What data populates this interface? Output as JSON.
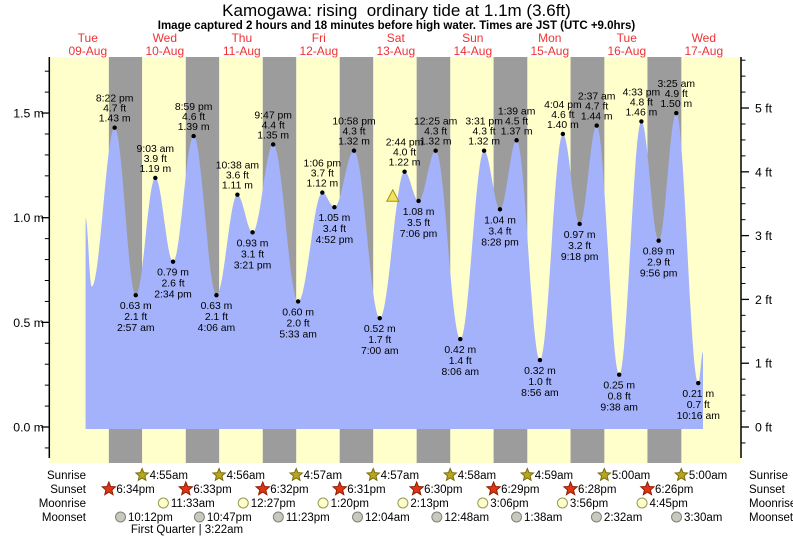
{
  "chart_data": {
    "type": "area",
    "title": "Kamogawa: rising  ordinary tide at 1.1m (3.6ft)",
    "subtitle": "Image captured 2 hours and 18 minutes before high water. Times are JST (UTC +9.0hrs)",
    "units": {
      "left_axis": "m",
      "right_axis": "ft"
    },
    "y_axis_left": {
      "labels": [
        "0.0 m",
        "0.5 m",
        "1.0 m",
        "1.5 m"
      ],
      "values": [
        0,
        0.5,
        1.0,
        1.5
      ],
      "minor_step_m": 0.1
    },
    "y_axis_right": {
      "labels": [
        "0 ft",
        "1 ft",
        "2 ft",
        "3 ft",
        "4 ft",
        "5 ft"
      ],
      "values": [
        0,
        1,
        2,
        3,
        4,
        5
      ],
      "minor_step_ft": 0.25
    },
    "days": [
      {
        "name": "Tue",
        "date": "09-Aug"
      },
      {
        "name": "Wed",
        "date": "10-Aug"
      },
      {
        "name": "Thu",
        "date": "11-Aug"
      },
      {
        "name": "Fri",
        "date": "12-Aug"
      },
      {
        "name": "Sat",
        "date": "13-Aug"
      },
      {
        "name": "Sun",
        "date": "14-Aug"
      },
      {
        "name": "Mon",
        "date": "15-Aug"
      },
      {
        "name": "Tue",
        "date": "16-Aug"
      },
      {
        "name": "Wed",
        "date": "17-Aug"
      }
    ],
    "tide_events": [
      {
        "day": 0,
        "type": "high",
        "time": "8:22 pm",
        "h24": 20.37,
        "m": "1.43",
        "ft": "4.7"
      },
      {
        "day": 1,
        "type": "low",
        "time": "2:57 am",
        "h24": 2.95,
        "m": "0.63",
        "ft": "2.1"
      },
      {
        "day": 1,
        "type": "high",
        "time": "9:03 am",
        "h24": 9.05,
        "m": "1.19",
        "ft": "3.9"
      },
      {
        "day": 1,
        "type": "low",
        "time": "2:34 pm",
        "h24": 14.57,
        "m": "0.79",
        "ft": "2.6"
      },
      {
        "day": 1,
        "type": "high",
        "time": "8:59 pm",
        "h24": 20.98,
        "m": "1.39",
        "ft": "4.6"
      },
      {
        "day": 2,
        "type": "low",
        "time": "4:06 am",
        "h24": 4.1,
        "m": "0.63",
        "ft": "2.1"
      },
      {
        "day": 2,
        "type": "high",
        "time": "10:38 am",
        "h24": 10.63,
        "m": "1.11",
        "ft": "3.6"
      },
      {
        "day": 2,
        "type": "low",
        "time": "3:21 pm",
        "h24": 15.35,
        "m": "0.93",
        "ft": "3.1"
      },
      {
        "day": 2,
        "type": "high",
        "time": "9:47 pm",
        "h24": 21.78,
        "m": "1.35",
        "ft": "4.4"
      },
      {
        "day": 3,
        "type": "low",
        "time": "5:33 am",
        "h24": 5.55,
        "m": "0.60",
        "ft": "2.0"
      },
      {
        "day": 3,
        "type": "high",
        "time": "1:06 pm",
        "h24": 13.1,
        "m": "1.12",
        "ft": "3.7"
      },
      {
        "day": 3,
        "type": "low",
        "time": "4:52 pm",
        "h24": 16.87,
        "m": "1.05",
        "ft": "3.4"
      },
      {
        "day": 3,
        "type": "high",
        "time": "10:58 pm",
        "h24": 22.97,
        "m": "1.32",
        "ft": "4.3"
      },
      {
        "day": 4,
        "type": "low",
        "time": "7:00 am",
        "h24": 7.0,
        "m": "0.52",
        "ft": "1.7"
      },
      {
        "day": 4,
        "type": "high",
        "time": "2:44 pm",
        "h24": 14.73,
        "m": "1.22",
        "ft": "4.0"
      },
      {
        "day": 4,
        "type": "low",
        "time": "7:06 pm",
        "h24": 19.1,
        "m": "1.08",
        "ft": "3.5"
      },
      {
        "day": 5,
        "type": "high",
        "time": "12:25 am",
        "h24": 0.42,
        "m": "1.32",
        "ft": "4.3"
      },
      {
        "day": 5,
        "type": "low",
        "time": "8:06 am",
        "h24": 8.1,
        "m": "0.42",
        "ft": "1.4"
      },
      {
        "day": 5,
        "type": "high",
        "time": "3:31 pm",
        "h24": 15.52,
        "m": "1.32",
        "ft": "4.3"
      },
      {
        "day": 5,
        "type": "low",
        "time": "8:28 pm",
        "h24": 20.47,
        "m": "1.04",
        "ft": "3.4"
      },
      {
        "day": 6,
        "type": "high",
        "time": "1:39 am",
        "h24": 1.65,
        "m": "1.37",
        "ft": "4.5"
      },
      {
        "day": 6,
        "type": "low",
        "time": "8:56 am",
        "h24": 8.93,
        "m": "0.32",
        "ft": "1.0"
      },
      {
        "day": 6,
        "type": "high",
        "time": "4:04 pm",
        "h24": 16.07,
        "m": "1.40",
        "ft": "4.6"
      },
      {
        "day": 6,
        "type": "low",
        "time": "9:18 pm",
        "h24": 21.3,
        "m": "0.97",
        "ft": "3.2"
      },
      {
        "day": 7,
        "type": "high",
        "time": "2:37 am",
        "h24": 2.62,
        "m": "1.44",
        "ft": "4.7"
      },
      {
        "day": 7,
        "type": "low",
        "time": "9:38 am",
        "h24": 9.63,
        "m": "0.25",
        "ft": "0.8"
      },
      {
        "day": 7,
        "type": "high",
        "time": "4:33 pm",
        "h24": 16.55,
        "m": "1.46",
        "ft": "4.8"
      },
      {
        "day": 7,
        "type": "low",
        "time": "9:56 pm",
        "h24": 21.93,
        "m": "0.89",
        "ft": "2.9"
      },
      {
        "day": 8,
        "type": "high",
        "time": "3:25 am",
        "h24": 3.42,
        "m": "1.50",
        "ft": "4.9"
      },
      {
        "day": 8,
        "type": "low",
        "time": "10:16 am",
        "h24": 10.27,
        "m": "0.21",
        "ft": "0.7"
      }
    ],
    "curve_edges": {
      "start": {
        "day": 0,
        "h24": 11.3,
        "h": 1.0
      },
      "start_low": {
        "day": 0,
        "h24": 13.2,
        "h": 0.67
      },
      "end": {
        "day": 8,
        "h24": 11.75,
        "h": 0.36
      }
    },
    "current_marker": {
      "day": 4,
      "h24": 12.0,
      "height_m": 1.1
    },
    "sun_moon": {
      "rows": [
        {
          "label": "Sunrise",
          "marker": "sunrise-star",
          "events": [
            {
              "day": 1,
              "time": "4:55am",
              "h24": 4.917
            },
            {
              "day": 2,
              "time": "4:56am",
              "h24": 4.933
            },
            {
              "day": 3,
              "time": "4:57am",
              "h24": 4.95
            },
            {
              "day": 4,
              "time": "4:57am",
              "h24": 4.95
            },
            {
              "day": 5,
              "time": "4:58am",
              "h24": 4.967
            },
            {
              "day": 6,
              "time": "4:59am",
              "h24": 4.983
            },
            {
              "day": 7,
              "time": "5:00am",
              "h24": 5.0
            },
            {
              "day": 8,
              "time": "5:00am",
              "h24": 5.0
            }
          ]
        },
        {
          "label": "Sunset",
          "marker": "sunset-star",
          "events": [
            {
              "day": 0,
              "time": "6:34pm",
              "h24": 18.567
            },
            {
              "day": 1,
              "time": "6:33pm",
              "h24": 18.55
            },
            {
              "day": 2,
              "time": "6:32pm",
              "h24": 18.533
            },
            {
              "day": 3,
              "time": "6:31pm",
              "h24": 18.517
            },
            {
              "day": 4,
              "time": "6:30pm",
              "h24": 18.5
            },
            {
              "day": 5,
              "time": "6:29pm",
              "h24": 18.483
            },
            {
              "day": 6,
              "time": "6:28pm",
              "h24": 18.467
            },
            {
              "day": 7,
              "time": "6:26pm",
              "h24": 18.433
            }
          ]
        },
        {
          "label": "Moonrise",
          "marker": "moonrise-circle",
          "events": [
            {
              "day": 1,
              "time": "11:33am",
              "h24": 11.55
            },
            {
              "day": 2,
              "time": "12:27pm",
              "h24": 12.45
            },
            {
              "day": 3,
              "time": "1:20pm",
              "h24": 13.333
            },
            {
              "day": 4,
              "time": "2:13pm",
              "h24": 14.217
            },
            {
              "day": 5,
              "time": "3:06pm",
              "h24": 15.1
            },
            {
              "day": 6,
              "time": "3:56pm",
              "h24": 15.933
            },
            {
              "day": 7,
              "time": "4:45pm",
              "h24": 16.75
            }
          ]
        },
        {
          "label": "Moonset",
          "marker": "moonset-circle",
          "events": [
            {
              "day": 0,
              "time": "10:12pm",
              "h24": 22.2
            },
            {
              "day": 1,
              "time": "10:47pm",
              "h24": 22.783
            },
            {
              "day": 2,
              "time": "11:23pm",
              "h24": 23.383
            },
            {
              "day": 4,
              "time": "12:04am",
              "h24": 0.067
            },
            {
              "day": 5,
              "time": "12:48am",
              "h24": 0.8
            },
            {
              "day": 6,
              "time": "1:38am",
              "h24": 1.633
            },
            {
              "day": 7,
              "time": "2:32am",
              "h24": 2.533
            },
            {
              "day": 8,
              "time": "3:30am",
              "h24": 3.5
            }
          ]
        }
      ],
      "moon_phase": "First Quarter | 3:22am"
    },
    "colors": {
      "day_band": "#ffffcc",
      "night_band": "#9c9c9c",
      "tide_area": "#a3b2fb",
      "day_label_red": "#ee3333",
      "text": "#000000",
      "sunrise_star": "#b9a520",
      "sunrise_star_stroke": "#79700a",
      "sunset_star": "#e03414",
      "sunset_star_stroke": "#8e1e04",
      "moonrise_circle": "#ffffcc",
      "moonrise_circle_stroke": "#99994d",
      "moonset_circle": "#c8c8bc",
      "moonset_circle_stroke": "#808080",
      "marker_triangle": "#f2e25f",
      "marker_triangle_stroke": "#a59310"
    }
  }
}
